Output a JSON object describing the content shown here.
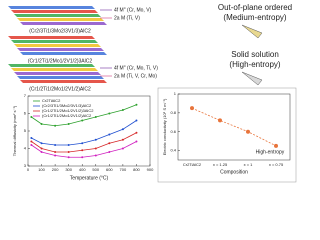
{
  "structures": [
    {
      "formula": "(Cr2/3Ti1/3Mo2/3V1/3)AlC2",
      "sites": [
        "4f M'' (Cr, Mo, V)",
        "2a M (Ti, V)"
      ]
    },
    {
      "formula": "(Cr1/2Ti1/2Mo1/2V1/2)3AlC2",
      "sites": []
    },
    {
      "formula": "(Cr1/2Ti1/2Mo1/2V1/2)AlC2",
      "sites": [
        "4f M'' (Cr, Mo, Ti, V)",
        "2a M (Ti, V, Cr, Mo)"
      ]
    }
  ],
  "labels": {
    "ordered": "Out-of-plane ordered",
    "ordered_sub": "(Medium-entropy)",
    "solid": "Solid solution",
    "solid_sub": "(High-entropy)"
  },
  "chart_data": [
    {
      "type": "line",
      "x_label": "Temperature (°C)",
      "y_label": "Thermal diffusivity (mm² s⁻¹)",
      "x": [
        25,
        100,
        200,
        300,
        400,
        500,
        600,
        700,
        800
      ],
      "xlim": [
        0,
        900
      ],
      "xticks": [
        0,
        100,
        200,
        300,
        400,
        500,
        600,
        700,
        800,
        900
      ],
      "ylim": [
        3,
        7
      ],
      "yticks": [
        3,
        4,
        5,
        6,
        7
      ],
      "series": [
        {
          "name": "Cr2TiAlC2",
          "color": "#2ca02c",
          "values": [
            5.8,
            5.4,
            5.3,
            5.4,
            5.6,
            5.8,
            6.0,
            6.2,
            6.5
          ]
        },
        {
          "name": "(Cr2/3Ti1/3Mo2/3V1/3)AlC2",
          "color": "#1f4fd0",
          "values": [
            4.6,
            4.3,
            4.2,
            4.2,
            4.3,
            4.5,
            4.8,
            5.1,
            5.6
          ]
        },
        {
          "name": "(Cr1/2Ti1/2Mo1/2V1/2)3AlC2",
          "color": "#d62728",
          "values": [
            4.4,
            4.0,
            3.8,
            3.8,
            3.9,
            4.0,
            4.3,
            4.5,
            4.9
          ]
        },
        {
          "name": "(Cr1/2Ti1/2Mo1/2V1/2)AlC2",
          "color": "#d020c0",
          "values": [
            4.2,
            3.8,
            3.6,
            3.5,
            3.5,
            3.6,
            3.8,
            4.0,
            4.4
          ]
        }
      ]
    },
    {
      "type": "line",
      "x_label": "Composition",
      "y_label": "Electric conductivity (10⁶ S m⁻¹)",
      "categories": [
        "Cr2TiAlC2",
        "x = 1.25",
        "x = 1",
        "x = 0.75"
      ],
      "ylim": [
        0.3,
        1.0
      ],
      "yticks": [
        0.4,
        0.6,
        0.8,
        1.0
      ],
      "annotation": "High-entropy",
      "series": [
        {
          "color": "#e8743b",
          "values": [
            0.85,
            0.72,
            0.6,
            0.45
          ]
        }
      ]
    }
  ]
}
